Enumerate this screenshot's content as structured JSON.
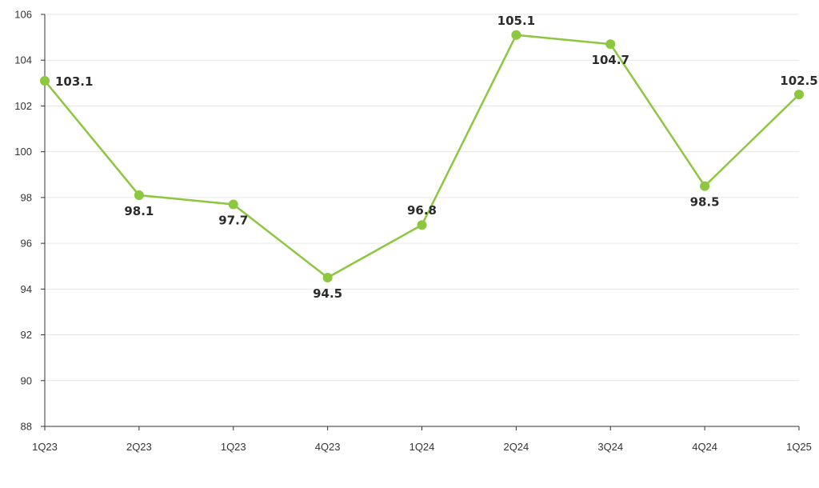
{
  "chart_data": {
    "type": "line",
    "title": "",
    "xlabel": "",
    "ylabel": "",
    "categories": [
      "1Q23",
      "2Q23",
      "1Q23",
      "4Q23",
      "1Q24",
      "2Q24",
      "3Q24",
      "4Q24",
      "1Q25"
    ],
    "series": [
      {
        "values": [
          103.1,
          98.1,
          97.7,
          94.5,
          96.8,
          105.1,
          104.7,
          98.5,
          102.5
        ]
      }
    ],
    "data_labels": [
      "103.1",
      "98.1",
      "97.7",
      "94.5",
      "96.8",
      "105.1",
      "104.7",
      "98.5",
      "102.5"
    ],
    "ylim": [
      88,
      106
    ],
    "yticks": [
      88,
      90,
      92,
      94,
      96,
      98,
      100,
      102,
      104,
      106
    ],
    "grid": true,
    "legend": "none",
    "colors": {
      "line": "#8dc63f",
      "grid": "#e6e6e6",
      "axis": "#333333"
    }
  }
}
